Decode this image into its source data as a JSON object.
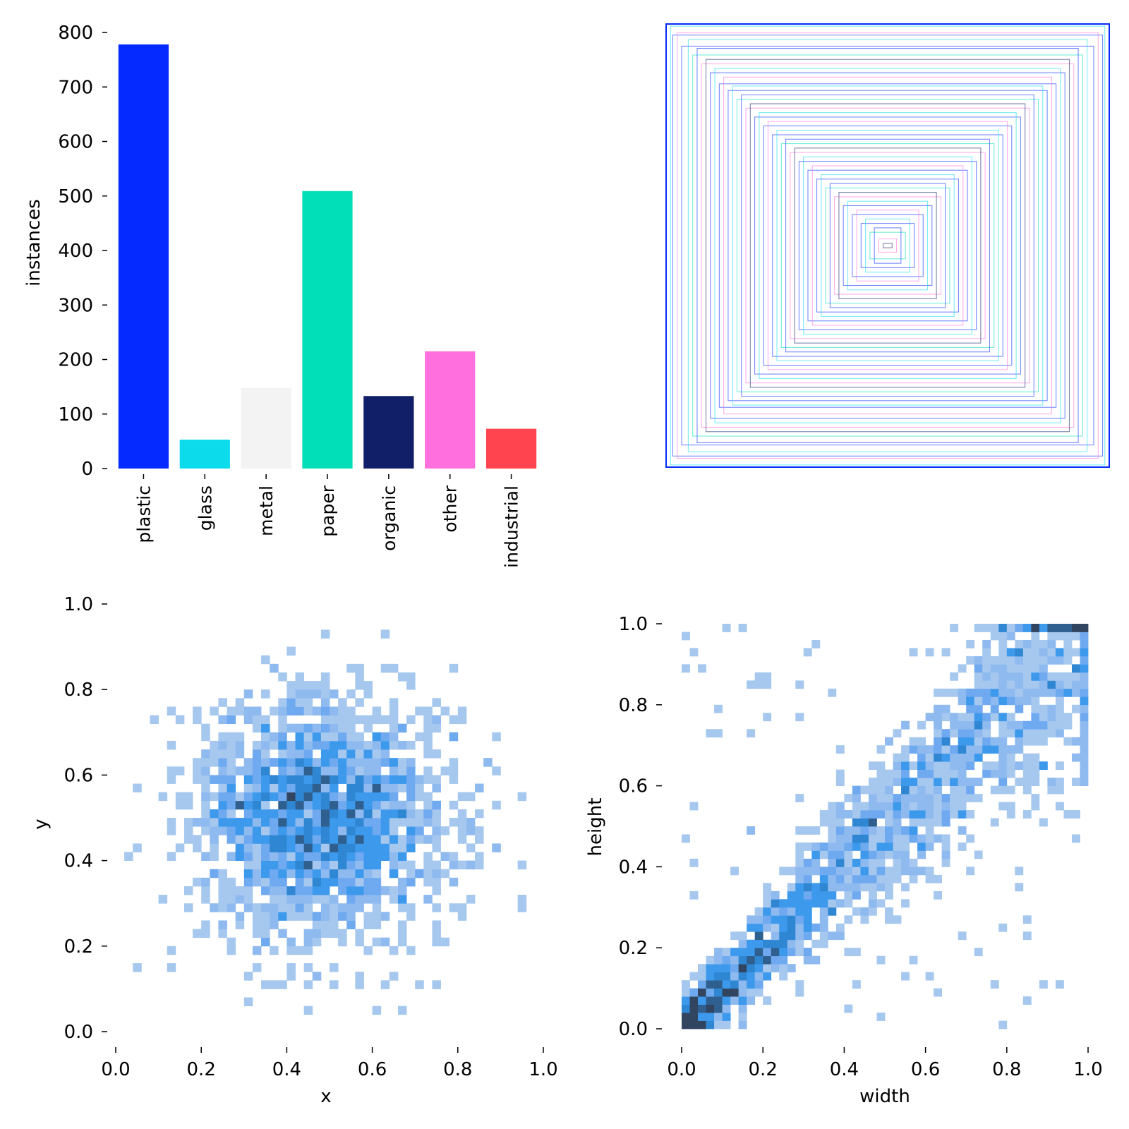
{
  "chart_data": [
    {
      "type": "bar",
      "categories": [
        "plastic",
        "glass",
        "metal",
        "paper",
        "organic",
        "other",
        "industrial"
      ],
      "values": [
        778,
        53,
        148,
        509,
        133,
        215,
        73
      ],
      "colors": [
        "#042AFF",
        "#0BDBEB",
        "#F3F3F3",
        "#00DFB7",
        "#111F68",
        "#FF6FDD",
        "#FF444F"
      ],
      "xlabel": "",
      "ylabel": "instances",
      "ylim": [
        0,
        800
      ],
      "yticks": [
        "0",
        "100",
        "200",
        "300",
        "400",
        "500",
        "600",
        "700",
        "800"
      ]
    },
    {
      "type": "box-overlay",
      "box_colors": [
        "#042AFF",
        "#0BDBEB",
        "#F3F3F3",
        "#00DFB7",
        "#111F68",
        "#FF6FDD",
        "#FF444F"
      ],
      "boxes": [
        [
          1.0,
          1.0
        ],
        [
          0.98,
          0.99
        ],
        [
          0.97,
          0.95
        ],
        [
          0.95,
          0.96
        ],
        [
          0.93,
          0.9
        ],
        [
          0.9,
          0.93
        ],
        [
          0.88,
          0.86
        ],
        [
          0.86,
          0.89
        ],
        [
          0.84,
          0.82
        ],
        [
          0.82,
          0.84
        ],
        [
          0.8,
          0.78
        ],
        [
          0.78,
          0.8
        ],
        [
          0.76,
          0.73
        ],
        [
          0.74,
          0.76
        ],
        [
          0.72,
          0.7
        ],
        [
          0.7,
          0.72
        ],
        [
          0.68,
          0.66
        ],
        [
          0.66,
          0.68
        ],
        [
          0.64,
          0.62
        ],
        [
          0.62,
          0.64
        ],
        [
          0.6,
          0.58
        ],
        [
          0.58,
          0.6
        ],
        [
          0.56,
          0.54
        ],
        [
          0.54,
          0.56
        ],
        [
          0.52,
          0.5
        ],
        [
          0.5,
          0.52
        ],
        [
          0.48,
          0.46
        ],
        [
          0.46,
          0.48
        ],
        [
          0.44,
          0.42
        ],
        [
          0.42,
          0.44
        ],
        [
          0.4,
          0.38
        ],
        [
          0.38,
          0.4
        ],
        [
          0.36,
          0.34
        ],
        [
          0.34,
          0.36
        ],
        [
          0.32,
          0.3
        ],
        [
          0.3,
          0.32
        ],
        [
          0.28,
          0.26
        ],
        [
          0.26,
          0.28
        ],
        [
          0.24,
          0.22
        ],
        [
          0.22,
          0.24
        ],
        [
          0.2,
          0.18
        ],
        [
          0.18,
          0.2
        ],
        [
          0.16,
          0.14
        ],
        [
          0.14,
          0.16
        ],
        [
          0.12,
          0.1
        ],
        [
          0.1,
          0.12
        ],
        [
          0.08,
          0.06
        ],
        [
          0.06,
          0.08
        ],
        [
          0.04,
          0.03
        ],
        [
          0.02,
          0.01
        ]
      ]
    },
    {
      "type": "heatmap",
      "xlabel": "x",
      "ylabel": "y",
      "xlim": [
        0,
        1
      ],
      "ylim": [
        0,
        1
      ],
      "xticks": [
        "0.0",
        "0.2",
        "0.4",
        "0.6",
        "0.8",
        "1.0"
      ],
      "yticks": [
        "0.0",
        "0.2",
        "0.4",
        "0.6",
        "0.8",
        "1.0"
      ],
      "bins": 50,
      "center": [
        0.48,
        0.5
      ],
      "spread": [
        0.15,
        0.14
      ],
      "points": 1900,
      "seed": 7
    },
    {
      "type": "heatmap",
      "xlabel": "width",
      "ylabel": "height",
      "xlim": [
        0,
        1
      ],
      "ylim": [
        0,
        1
      ],
      "xticks": [
        "0.0",
        "0.2",
        "0.4",
        "0.6",
        "0.8",
        "1.0"
      ],
      "yticks": [
        "0.0",
        "0.2",
        "0.4",
        "0.6",
        "0.8",
        "1.0"
      ],
      "bins": 50,
      "points": 1900,
      "seed": 13
    }
  ],
  "heatmap_colors": [
    "#a6c8ef",
    "#8fbaf0",
    "#6fa9f0",
    "#3d99ec",
    "#2f86d2",
    "#2f5f8f",
    "#324560"
  ]
}
